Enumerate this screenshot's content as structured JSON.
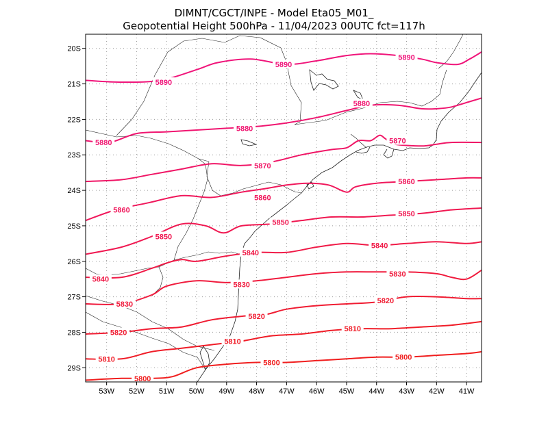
{
  "title": {
    "line1": "DIMNT/CGCT/INPE -  Model Eta05_M01_",
    "line2": "Geopotential Height 500hPa -  11/04/2023 00UTC fct=117h"
  },
  "axes": {
    "x_ticks": [
      "53W",
      "52W",
      "51W",
      "50W",
      "49W",
      "48W",
      "47W",
      "46W",
      "45W",
      "44W",
      "43W",
      "42W",
      "41W"
    ],
    "y_ticks": [
      "20S",
      "21S",
      "22S",
      "23S",
      "24S",
      "25S",
      "26S",
      "27S",
      "28S",
      "29S"
    ]
  },
  "colors": {
    "high": "#f0147a",
    "low": "#f01e1e",
    "coast": "#222222",
    "grid": "#9a9a9a"
  },
  "chart_data": {
    "type": "contour",
    "variable": "Geopotential Height 500hPa",
    "lon_range": [
      -53.7,
      -40.5
    ],
    "lat_range": [
      -29.4,
      -19.6
    ],
    "levels": [
      {
        "value": 5890,
        "lon": [
          -53.7,
          -52.5,
          -51.2,
          -50.0,
          -49.3,
          -48.2,
          -47.0,
          -46.0,
          -45.0,
          -44.2,
          -43.3,
          -42.5,
          -42.0,
          -41.3,
          -40.9,
          -40.5
        ],
        "lat": [
          -20.9,
          -20.95,
          -20.9,
          -20.6,
          -20.4,
          -20.3,
          -20.45,
          -20.35,
          -20.2,
          -20.15,
          -20.2,
          -20.3,
          -20.4,
          -20.45,
          -20.3,
          -20.1
        ],
        "labels": [
          {
            "lon": -51.1,
            "lat": -20.95
          },
          {
            "lon": -47.1,
            "lat": -20.45
          },
          {
            "lon": -43.0,
            "lat": -20.25
          }
        ]
      },
      {
        "value": 5880,
        "lon": [
          -53.7,
          -52.9,
          -52.0,
          -51.0,
          -50.0,
          -49.0,
          -48.0,
          -47.0,
          -46.0,
          -45.0,
          -44.2,
          -43.3,
          -42.5,
          -42.0,
          -41.5,
          -40.9,
          -40.5
        ],
        "lat": [
          -22.6,
          -22.65,
          -22.4,
          -22.35,
          -22.3,
          -22.25,
          -22.2,
          -22.1,
          -21.95,
          -21.75,
          -21.6,
          -21.6,
          -21.7,
          -21.7,
          -21.65,
          -21.5,
          -21.4
        ],
        "labels": [
          {
            "lon": -53.1,
            "lat": -22.65
          },
          {
            "lon": -48.4,
            "lat": -22.25
          },
          {
            "lon": -44.5,
            "lat": -21.55
          }
        ]
      },
      {
        "value": 5870,
        "lon": [
          -53.7,
          -52.5,
          -51.5,
          -50.5,
          -49.5,
          -48.5,
          -47.5,
          -46.5,
          -45.5,
          -45.0,
          -44.6,
          -44.2,
          -43.9,
          -43.7,
          -43.4,
          -42.5,
          -42.0,
          -41.5,
          -40.5
        ],
        "lat": [
          -23.75,
          -23.7,
          -23.55,
          -23.4,
          -23.25,
          -23.3,
          -23.2,
          -23.0,
          -22.85,
          -22.8,
          -22.6,
          -22.6,
          -22.45,
          -22.55,
          -22.7,
          -22.75,
          -22.7,
          -22.65,
          -22.65
        ],
        "labels": [
          {
            "lon": -47.8,
            "lat": -23.3
          },
          {
            "lon": -43.3,
            "lat": -22.6
          }
        ]
      },
      {
        "value": 5860,
        "lon": [
          -53.7,
          -52.7,
          -51.6,
          -50.5,
          -49.5,
          -48.5,
          -47.7,
          -47.0,
          -46.3,
          -45.6,
          -45.0,
          -44.7,
          -44.0,
          -43.0,
          -42.0,
          -41.0,
          -40.5
        ],
        "lat": [
          -24.85,
          -24.55,
          -24.35,
          -24.15,
          -24.2,
          -24.05,
          -23.95,
          -23.85,
          -23.8,
          -23.85,
          -24.05,
          -23.9,
          -23.8,
          -23.75,
          -23.7,
          -23.65,
          -23.65
        ],
        "labels": [
          {
            "lon": -52.5,
            "lat": -24.55
          },
          {
            "lon": -47.8,
            "lat": -24.2
          },
          {
            "lon": -43.0,
            "lat": -23.75
          }
        ]
      },
      {
        "value": 5850,
        "lon": [
          -53.7,
          -52.5,
          -51.5,
          -50.5,
          -49.7,
          -49.1,
          -48.5,
          -47.5,
          -46.5,
          -45.5,
          -44.5,
          -43.5,
          -42.5,
          -41.5,
          -40.5
        ],
        "lat": [
          -25.8,
          -25.6,
          -25.3,
          -24.95,
          -25.0,
          -25.2,
          -25.0,
          -24.95,
          -24.85,
          -24.75,
          -24.75,
          -24.7,
          -24.65,
          -24.55,
          -24.5
        ],
        "labels": [
          {
            "lon": -51.1,
            "lat": -25.3
          },
          {
            "lon": -47.2,
            "lat": -24.9
          },
          {
            "lon": -43.0,
            "lat": -24.65
          }
        ]
      },
      {
        "value": 5840,
        "lon": [
          -53.7,
          -52.5,
          -51.5,
          -51.0,
          -50.5,
          -50.0,
          -49.0,
          -48.0,
          -47.0,
          -46.0,
          -45.0,
          -44.0,
          -43.0,
          -42.0,
          -41.0,
          -40.5
        ],
        "lat": [
          -26.45,
          -26.45,
          -26.2,
          -26.05,
          -25.95,
          -26.0,
          -25.85,
          -25.75,
          -25.75,
          -25.6,
          -25.5,
          -25.55,
          -25.5,
          -25.45,
          -25.5,
          -25.45
        ],
        "labels": [
          {
            "lon": -53.2,
            "lat": -26.5
          },
          {
            "lon": -48.2,
            "lat": -25.75
          },
          {
            "lon": -43.9,
            "lat": -25.55
          }
        ]
      },
      {
        "value": 5830,
        "lon": [
          -53.7,
          -52.5,
          -51.5,
          -51.0,
          -50.0,
          -49.0,
          -48.0,
          -47.0,
          -46.0,
          -45.0,
          -44.0,
          -43.0,
          -42.0,
          -41.5,
          -41.0,
          -40.5
        ],
        "lat": [
          -27.2,
          -27.2,
          -26.95,
          -26.7,
          -26.55,
          -26.6,
          -26.55,
          -26.45,
          -26.35,
          -26.3,
          -26.3,
          -26.3,
          -26.35,
          -26.45,
          -26.5,
          -26.25
        ],
        "labels": [
          {
            "lon": -52.4,
            "lat": -27.2
          },
          {
            "lon": -48.5,
            "lat": -26.65
          },
          {
            "lon": -43.3,
            "lat": -26.35
          }
        ]
      },
      {
        "value": 5820,
        "lon": [
          -53.7,
          -52.5,
          -51.5,
          -50.5,
          -49.5,
          -48.5,
          -47.7,
          -47.0,
          -46.0,
          -45.0,
          -44.0,
          -43.0,
          -42.0,
          -41.0,
          -40.5
        ],
        "lat": [
          -28.05,
          -28.0,
          -27.9,
          -27.85,
          -27.65,
          -27.55,
          -27.5,
          -27.35,
          -27.25,
          -27.2,
          -27.15,
          -27.0,
          -27.0,
          -27.05,
          -27.05
        ],
        "labels": [
          {
            "lon": -52.6,
            "lat": -28.0
          },
          {
            "lon": -48.0,
            "lat": -27.55
          },
          {
            "lon": -43.7,
            "lat": -27.1
          }
        ]
      },
      {
        "value": 5810,
        "lon": [
          -53.7,
          -52.5,
          -51.5,
          -50.5,
          -49.5,
          -48.5,
          -47.5,
          -46.5,
          -45.5,
          -44.5,
          -43.5,
          -42.5,
          -41.5,
          -40.5
        ],
        "lat": [
          -28.75,
          -28.75,
          -28.55,
          -28.45,
          -28.35,
          -28.25,
          -28.1,
          -28.05,
          -27.95,
          -27.9,
          -27.9,
          -27.85,
          -27.8,
          -27.7
        ],
        "labels": [
          {
            "lon": -53.0,
            "lat": -28.75
          },
          {
            "lon": -48.8,
            "lat": -28.25
          },
          {
            "lon": -44.8,
            "lat": -27.9
          }
        ]
      },
      {
        "value": 5800,
        "lon": [
          -53.7,
          -52.5,
          -51.5,
          -50.8,
          -50.0,
          -49.0,
          -48.0,
          -47.0,
          -46.0,
          -45.0,
          -44.0,
          -43.0,
          -42.0,
          -41.0,
          -40.5
        ],
        "lat": [
          -29.35,
          -29.3,
          -29.3,
          -29.25,
          -29.0,
          -28.9,
          -28.85,
          -28.85,
          -28.8,
          -28.75,
          -28.7,
          -28.7,
          -28.65,
          -28.6,
          -28.55
        ],
        "labels": [
          {
            "lon": -51.8,
            "lat": -29.3
          },
          {
            "lon": -47.5,
            "lat": -28.85
          },
          {
            "lon": -43.1,
            "lat": -28.7
          }
        ]
      }
    ]
  }
}
